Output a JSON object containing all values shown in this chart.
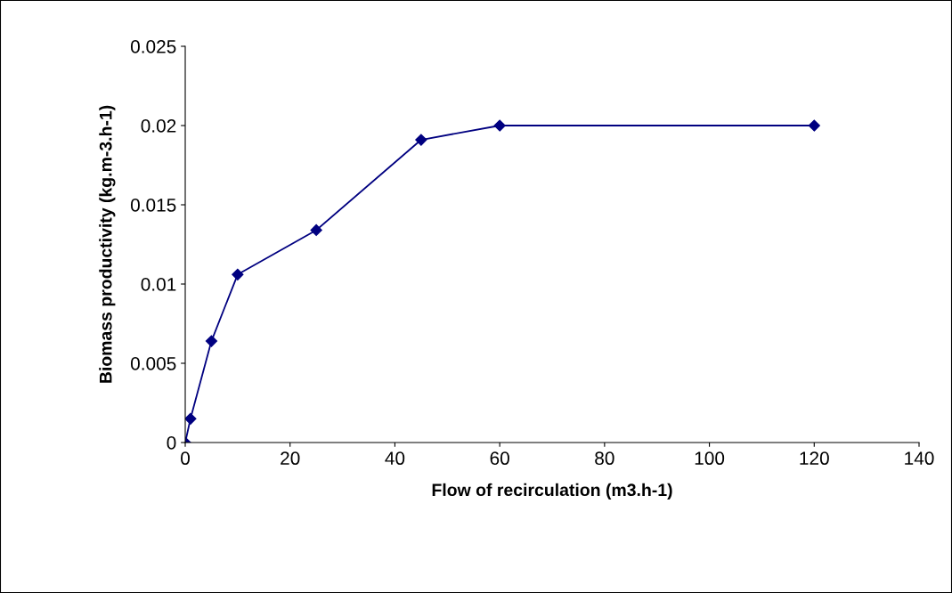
{
  "chart_data": {
    "type": "line",
    "xlabel": "Flow of recirculation (m3.h-1)",
    "ylabel": "Biomass productivity (kg.m-3.h-1)",
    "x": [
      0,
      1,
      5,
      10,
      25,
      45,
      60,
      120
    ],
    "series": [
      {
        "color": "#000080",
        "values": [
          0,
          0.0015,
          0.0064,
          0.0106,
          0.0134,
          0.0191,
          0.02,
          0.02
        ]
      }
    ],
    "xlim": [
      0,
      140
    ],
    "xticks": [
      0,
      20,
      40,
      60,
      80,
      100,
      120,
      140
    ],
    "ylim": [
      0,
      0.025
    ],
    "yticks": [
      0,
      0.005,
      0.01,
      0.015,
      0.02,
      0.025
    ],
    "marker": "diamond",
    "line_style": "solid",
    "grid": false,
    "legend": false
  }
}
